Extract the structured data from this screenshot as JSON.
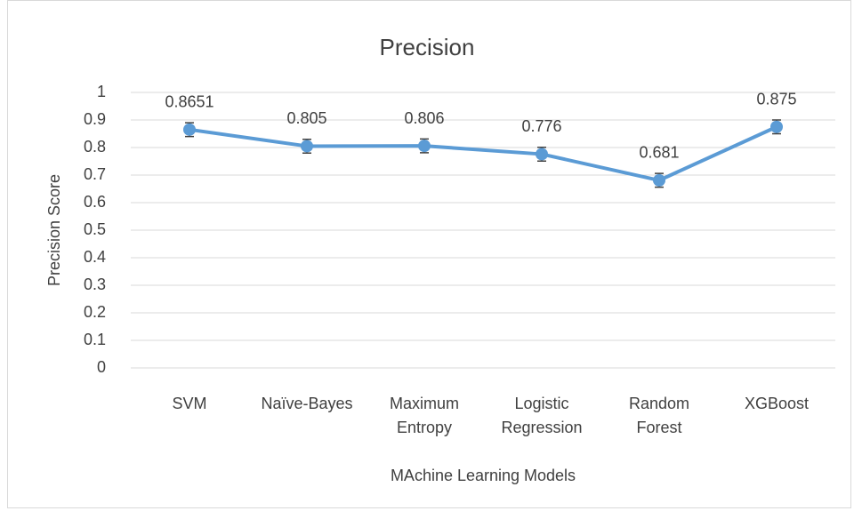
{
  "chart_data": {
    "type": "line",
    "title": "Precision",
    "x_label": "MAchine Learning Models",
    "y_label": "Precision Score",
    "categories": [
      "SVM",
      "Naïve-Bayes",
      "Maximum Entropy",
      "Logistic Regression",
      "Random Forest",
      "XGBoost"
    ],
    "series": [
      {
        "name": "Precision",
        "color": "#5b9bd5",
        "values": [
          0.8651,
          0.805,
          0.806,
          0.776,
          0.681,
          0.875
        ],
        "errors": [
          0.025,
          0.025,
          0.025,
          0.025,
          0.025,
          0.025
        ]
      }
    ],
    "error_color": "#404040",
    "ylim": [
      0,
      1
    ],
    "yticks": [
      0,
      0.1,
      0.2,
      0.3,
      0.4,
      0.5,
      0.6,
      0.7,
      0.8,
      0.9,
      1
    ],
    "grid": true
  }
}
